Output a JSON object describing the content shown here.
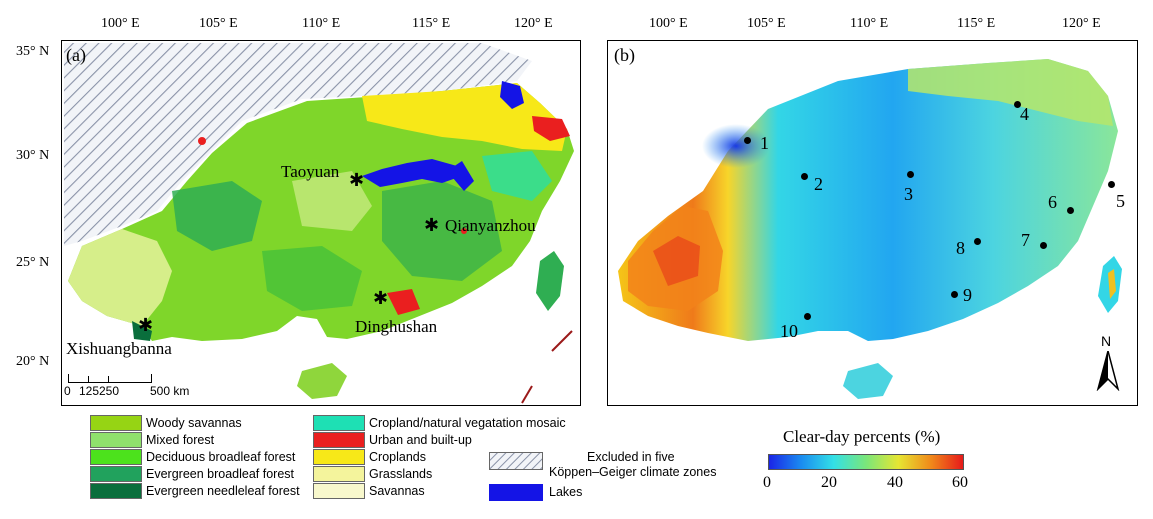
{
  "panel_a": {
    "label": "(a)",
    "lon_ticks": [
      "100° E",
      "105° E",
      "110° E",
      "115° E",
      "120° E"
    ],
    "lat_ticks": [
      "35° N",
      "30° N",
      "25° N",
      "20° N"
    ],
    "sites": [
      "Taoyuan",
      "Qianyanzhou",
      "Dinghushan",
      "Xishuangbanna"
    ],
    "scalebar": {
      "ticks": [
        "0",
        "125",
        "250",
        "500 km"
      ]
    },
    "colors": {
      "woody_savannas": "#96d414",
      "mixed_forest": "#8fe06c",
      "deciduous_broadleaf": "#4ce21c",
      "evergreen_broadleaf": "#21a25d",
      "evergreen_needleleaf": "#0a6e3c",
      "cropland_mosaic": "#1ee0b4",
      "urban": "#ea1f1f",
      "croplands": "#f7e818",
      "grasslands": "#f4f49c",
      "savannas": "#f8f8cc",
      "lakes": "#1414e6"
    }
  },
  "panel_b": {
    "label": "(b)",
    "lon_ticks": [
      "100° E",
      "105° E",
      "110° E",
      "115° E",
      "120° E"
    ],
    "stations": [
      "1",
      "2",
      "3",
      "4",
      "5",
      "6",
      "7",
      "8",
      "9",
      "10"
    ],
    "north_arrow": "N",
    "colorbar": {
      "title": "Clear-day percents (%)",
      "ticks": [
        "0",
        "20",
        "40",
        "60"
      ],
      "min": 0,
      "max": 60,
      "colors": [
        "#1a24e6",
        "#1a8cf0",
        "#33e0e6",
        "#7ae67a",
        "#e6e633",
        "#f08a1a",
        "#e61a1a"
      ]
    }
  },
  "legend": {
    "items": [
      {
        "label": "Woody savannas",
        "color": "#96d414"
      },
      {
        "label": "Mixed forest",
        "color": "#8fe06c"
      },
      {
        "label": "Deciduous broadleaf forest",
        "color": "#4ce21c"
      },
      {
        "label": "Evergreen broadleaf forest",
        "color": "#21a25d"
      },
      {
        "label": "Evergreen needleleaf forest",
        "color": "#0a6e3c"
      },
      {
        "label": "Cropland/natural vegatation mosaic",
        "color": "#1ee0b4"
      },
      {
        "label": "Urban and built-up",
        "color": "#ea1f1f"
      },
      {
        "label": "Croplands",
        "color": "#f7e818"
      },
      {
        "label": "Grasslands",
        "color": "#f4f49c"
      },
      {
        "label": "Savannas",
        "color": "#f8f8cc"
      }
    ],
    "excluded_line1": "Excluded in five",
    "excluded_line2": "Köppen–Geiger climate zones",
    "lakes": "Lakes"
  }
}
